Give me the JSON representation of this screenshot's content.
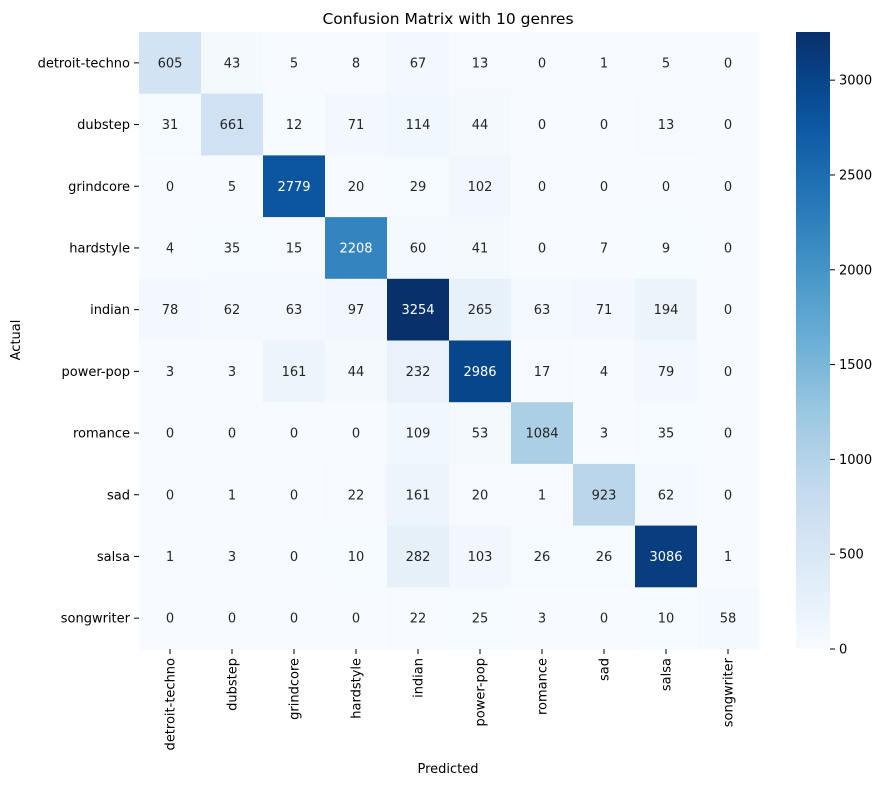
{
  "chart_data": {
    "type": "heatmap",
    "title": "Confusion Matrix with 10 genres",
    "xlabel": "Predicted",
    "ylabel": "Actual",
    "x_categories": [
      "detroit-techno",
      "dubstep",
      "grindcore",
      "hardstyle",
      "indian",
      "power-pop",
      "romance",
      "sad",
      "salsa",
      "songwriter"
    ],
    "y_categories": [
      "detroit-techno",
      "dubstep",
      "grindcore",
      "hardstyle",
      "indian",
      "power-pop",
      "romance",
      "sad",
      "salsa",
      "songwriter"
    ],
    "values": [
      [
        605,
        43,
        5,
        8,
        67,
        13,
        0,
        1,
        5,
        0
      ],
      [
        31,
        661,
        12,
        71,
        114,
        44,
        0,
        0,
        13,
        0
      ],
      [
        0,
        5,
        2779,
        20,
        29,
        102,
        0,
        0,
        0,
        0
      ],
      [
        4,
        35,
        15,
        2208,
        60,
        41,
        0,
        7,
        9,
        0
      ],
      [
        78,
        62,
        63,
        97,
        3254,
        265,
        63,
        71,
        194,
        0
      ],
      [
        3,
        3,
        161,
        44,
        232,
        2986,
        17,
        4,
        79,
        0
      ],
      [
        0,
        0,
        0,
        0,
        109,
        53,
        1084,
        3,
        35,
        0
      ],
      [
        0,
        1,
        0,
        22,
        161,
        20,
        1,
        923,
        62,
        0
      ],
      [
        1,
        3,
        0,
        10,
        282,
        103,
        26,
        26,
        3086,
        1
      ],
      [
        0,
        0,
        0,
        0,
        22,
        25,
        3,
        0,
        10,
        58
      ]
    ],
    "colorbar": {
      "min": 0,
      "max": 3254,
      "ticks": [
        0,
        500,
        1000,
        1500,
        2000,
        2500,
        3000
      ],
      "colormap": "Blues"
    },
    "colors": {
      "low": "#f7fbff",
      "high": "#08306b",
      "text_dark": "#262626",
      "text_light": "#ffffff"
    }
  }
}
